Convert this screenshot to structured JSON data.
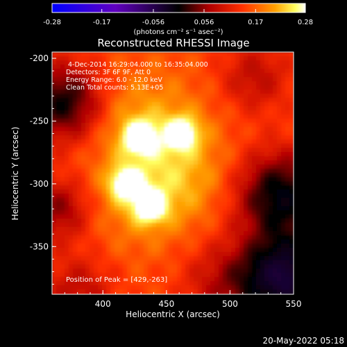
{
  "colorbar": {
    "ticks": [
      "-0.28",
      "-0.17",
      "-0.056",
      "0.056",
      "0.17",
      "0.28"
    ],
    "unit_label": "(photons cm⁻² s⁻¹ asec⁻²)",
    "range": [
      -0.28,
      0.28
    ]
  },
  "chart_data": {
    "type": "heatmap",
    "title": "Reconstructed RHESSI Image",
    "xlabel": "Heliocentric X (arcsec)",
    "ylabel": "Heliocentric Y (arcsec)",
    "xlim": [
      360,
      550
    ],
    "ylim": [
      -388,
      -195
    ],
    "xticks": [
      400,
      450,
      500,
      550
    ],
    "yticks": [
      -200,
      -250,
      -300,
      -350
    ],
    "colormap": "black-red-orange-yellow-white (positive), black-blue-purple (negative)",
    "sources": [
      {
        "x": 429,
        "y": -263,
        "relative_intensity": 1.0
      },
      {
        "x": 462,
        "y": -260,
        "relative_intensity": 0.9
      },
      {
        "x": 418,
        "y": -300,
        "relative_intensity": 0.85
      },
      {
        "x": 437,
        "y": -318,
        "relative_intensity": 0.95
      }
    ],
    "annotations": [
      "4-Dec-2014 16:29:04.000 to 16:35:04.000",
      "Detectors: 3F 6F 9F, Att 0",
      "Energy Range: 6.0 - 12.0 keV",
      "Clean    Total counts: 5.13E+05"
    ],
    "peak_label": "Position of Peak = [429,-263]"
  },
  "timestamp": "20-May-2022 05:18"
}
